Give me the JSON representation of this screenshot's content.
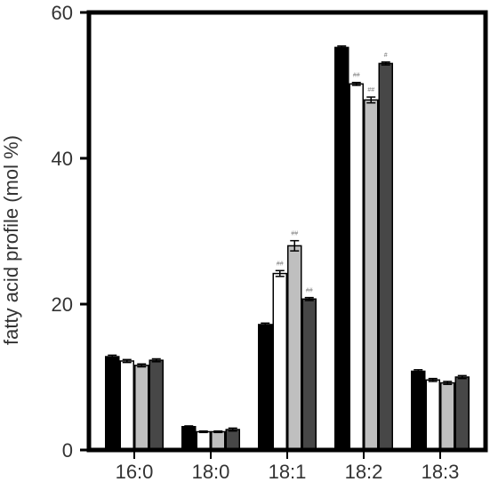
{
  "chart_data": {
    "type": "bar",
    "title": "",
    "xlabel": "",
    "ylabel": "fatty acid profile (mol %)",
    "ylim": [
      0,
      60
    ],
    "yticks": [
      0,
      20,
      40,
      60
    ],
    "grid": false,
    "categories": [
      "16:0",
      "18:0",
      "18:1",
      "18:2",
      "18:3"
    ],
    "series": [
      {
        "color": "#000000",
        "values": [
          12.8,
          3.2,
          17.2,
          55.2,
          10.8
        ],
        "errors": [
          0.2,
          0.1,
          0.2,
          0.2,
          0.2
        ],
        "annotations": [
          "",
          "",
          "",
          "",
          ""
        ]
      },
      {
        "color": "#ffffff",
        "values": [
          12.2,
          2.5,
          24.2,
          50.2,
          9.6
        ],
        "errors": [
          0.2,
          0.1,
          0.4,
          0.2,
          0.2
        ],
        "annotations": [
          "",
          "",
          "##",
          "##",
          ""
        ]
      },
      {
        "color": "#bfbfbf",
        "values": [
          11.6,
          2.5,
          28.0,
          48.0,
          9.2
        ],
        "errors": [
          0.2,
          0.1,
          0.7,
          0.4,
          0.2
        ],
        "annotations": [
          "",
          "",
          "##",
          "##",
          ""
        ]
      },
      {
        "color": "#474747",
        "values": [
          12.3,
          2.8,
          20.7,
          53.0,
          10.0
        ],
        "errors": [
          0.2,
          0.2,
          0.2,
          0.2,
          0.2
        ],
        "annotations": [
          "",
          "",
          "##",
          "#",
          ""
        ]
      }
    ]
  }
}
